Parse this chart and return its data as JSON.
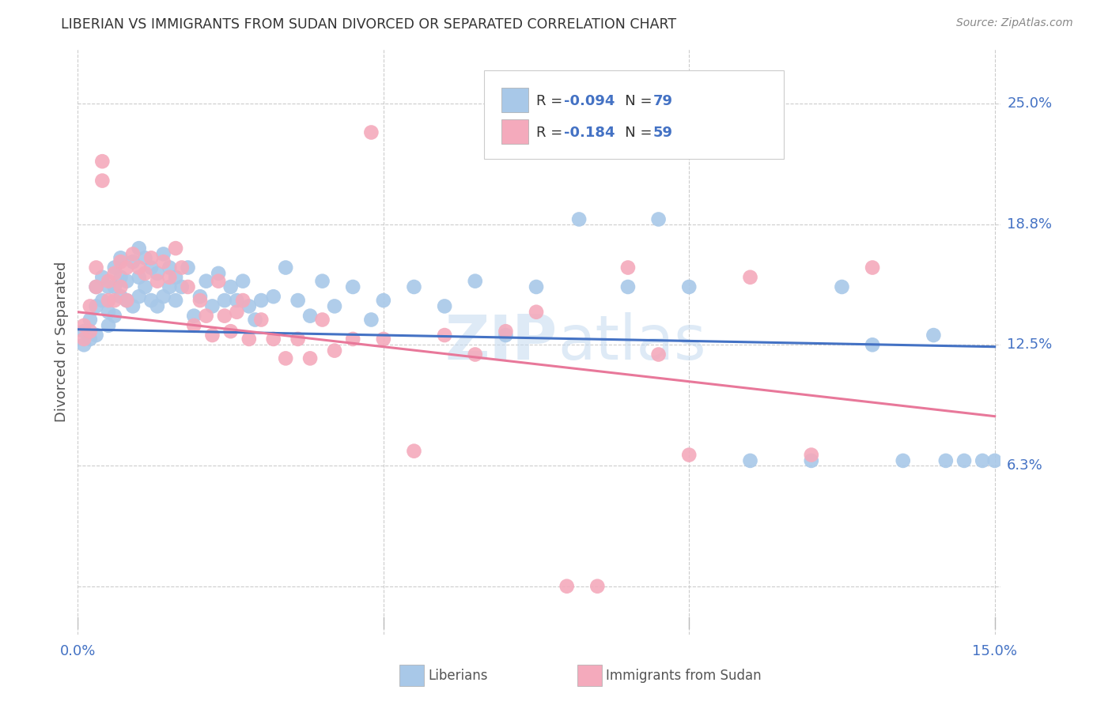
{
  "title": "LIBERIAN VS IMMIGRANTS FROM SUDAN DIVORCED OR SEPARATED CORRELATION CHART",
  "source": "Source: ZipAtlas.com",
  "ylabel": "Divorced or Separated",
  "ytick_vals": [
    0.0,
    0.0625,
    0.125,
    0.1875,
    0.25
  ],
  "ytick_labels": [
    "",
    "6.3%",
    "12.5%",
    "18.8%",
    "25.0%"
  ],
  "xtick_vals": [
    0.0,
    0.05,
    0.1,
    0.15
  ],
  "xtick_labels": [
    "0.0%",
    "",
    "",
    "15.0%"
  ],
  "xmin": 0.0,
  "xmax": 0.15,
  "ymin": -0.025,
  "ymax": 0.278,
  "blue_color": "#A8C8E8",
  "pink_color": "#F4AABC",
  "blue_line_color": "#4472C4",
  "pink_line_color": "#E8789A",
  "title_color": "#333333",
  "source_color": "#888888",
  "axis_label_color": "#4472C4",
  "grid_color": "#CCCCCC",
  "watermark_color": "#C8DCF0",
  "legend_r1_val": "-0.094",
  "legend_r1_n": "79",
  "legend_r2_val": "-0.184",
  "legend_r2_n": "59",
  "legend_label1": "Liberians",
  "legend_label2": "Immigrants from Sudan",
  "blue_line_start": 0.133,
  "blue_line_end": 0.124,
  "pink_line_start": 0.142,
  "pink_line_end": 0.088,
  "lib_x": [
    0.001,
    0.001,
    0.002,
    0.002,
    0.003,
    0.003,
    0.003,
    0.004,
    0.004,
    0.005,
    0.005,
    0.005,
    0.006,
    0.006,
    0.006,
    0.007,
    0.007,
    0.007,
    0.008,
    0.008,
    0.009,
    0.009,
    0.01,
    0.01,
    0.01,
    0.011,
    0.011,
    0.012,
    0.012,
    0.013,
    0.013,
    0.014,
    0.014,
    0.015,
    0.015,
    0.016,
    0.016,
    0.017,
    0.018,
    0.019,
    0.02,
    0.021,
    0.022,
    0.023,
    0.024,
    0.025,
    0.026,
    0.027,
    0.028,
    0.029,
    0.03,
    0.032,
    0.034,
    0.036,
    0.038,
    0.04,
    0.042,
    0.045,
    0.048,
    0.05,
    0.055,
    0.06,
    0.065,
    0.07,
    0.075,
    0.082,
    0.09,
    0.095,
    0.1,
    0.11,
    0.12,
    0.125,
    0.13,
    0.135,
    0.14,
    0.142,
    0.145,
    0.148,
    0.15
  ],
  "lib_y": [
    0.132,
    0.125,
    0.138,
    0.128,
    0.155,
    0.145,
    0.13,
    0.16,
    0.148,
    0.155,
    0.142,
    0.135,
    0.165,
    0.155,
    0.14,
    0.17,
    0.16,
    0.15,
    0.158,
    0.148,
    0.168,
    0.145,
    0.175,
    0.16,
    0.15,
    0.17,
    0.155,
    0.165,
    0.148,
    0.162,
    0.145,
    0.172,
    0.15,
    0.165,
    0.155,
    0.16,
    0.148,
    0.155,
    0.165,
    0.14,
    0.15,
    0.158,
    0.145,
    0.162,
    0.148,
    0.155,
    0.148,
    0.158,
    0.145,
    0.138,
    0.148,
    0.15,
    0.165,
    0.148,
    0.14,
    0.158,
    0.145,
    0.155,
    0.138,
    0.148,
    0.155,
    0.145,
    0.158,
    0.13,
    0.155,
    0.19,
    0.155,
    0.19,
    0.155,
    0.065,
    0.065,
    0.155,
    0.125,
    0.065,
    0.13,
    0.065,
    0.065,
    0.065,
    0.065
  ],
  "sud_x": [
    0.001,
    0.001,
    0.002,
    0.002,
    0.003,
    0.003,
    0.004,
    0.004,
    0.005,
    0.005,
    0.006,
    0.006,
    0.007,
    0.007,
    0.008,
    0.008,
    0.009,
    0.01,
    0.011,
    0.012,
    0.013,
    0.014,
    0.015,
    0.016,
    0.017,
    0.018,
    0.019,
    0.02,
    0.021,
    0.022,
    0.023,
    0.024,
    0.025,
    0.026,
    0.027,
    0.028,
    0.03,
    0.032,
    0.034,
    0.036,
    0.038,
    0.04,
    0.042,
    0.045,
    0.048,
    0.05,
    0.055,
    0.06,
    0.065,
    0.07,
    0.075,
    0.08,
    0.085,
    0.09,
    0.095,
    0.1,
    0.11,
    0.12,
    0.13
  ],
  "sud_y": [
    0.135,
    0.128,
    0.145,
    0.132,
    0.165,
    0.155,
    0.22,
    0.21,
    0.158,
    0.148,
    0.162,
    0.148,
    0.168,
    0.155,
    0.165,
    0.148,
    0.172,
    0.165,
    0.162,
    0.17,
    0.158,
    0.168,
    0.16,
    0.175,
    0.165,
    0.155,
    0.135,
    0.148,
    0.14,
    0.13,
    0.158,
    0.14,
    0.132,
    0.142,
    0.148,
    0.128,
    0.138,
    0.128,
    0.118,
    0.128,
    0.118,
    0.138,
    0.122,
    0.128,
    0.235,
    0.128,
    0.07,
    0.13,
    0.12,
    0.132,
    0.142,
    0.0,
    0.0,
    0.165,
    0.12,
    0.068,
    0.16,
    0.068,
    0.165
  ]
}
